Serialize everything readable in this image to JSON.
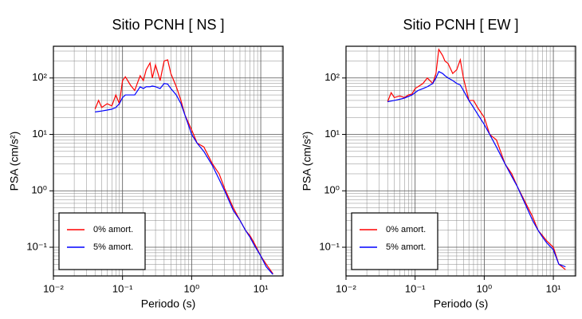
{
  "chart_data": [
    {
      "type": "line",
      "title": "Sitio PCNH [ NS ]",
      "x_label": "Periodo (s)",
      "y_label": "PSA (cm/s²)",
      "x": [
        0.04,
        0.045,
        0.05,
        0.06,
        0.07,
        0.08,
        0.09,
        0.1,
        0.11,
        0.13,
        0.15,
        0.18,
        0.2,
        0.22,
        0.25,
        0.27,
        0.3,
        0.35,
        0.4,
        0.45,
        0.5,
        0.6,
        0.7,
        0.8,
        1,
        1.2,
        1.5,
        2,
        2.5,
        3,
        4,
        5,
        6,
        7,
        8,
        10,
        12,
        15
      ],
      "series": [
        {
          "name": "0% amort.",
          "color": "#ff0000",
          "values": [
            28,
            40,
            30,
            35,
            32,
            50,
            35,
            90,
            105,
            75,
            60,
            110,
            90,
            140,
            185,
            100,
            170,
            90,
            200,
            210,
            120,
            70,
            40,
            22,
            12,
            7,
            6,
            3,
            2,
            1.1,
            0.5,
            0.3,
            0.2,
            0.16,
            0.12,
            0.07,
            0.05,
            0.034
          ]
        },
        {
          "name": "5% amort.",
          "color": "#0000ff",
          "values": [
            25,
            25.5,
            26,
            27,
            28,
            30,
            35,
            45,
            50,
            50,
            50,
            70,
            65,
            70,
            70,
            72,
            70,
            65,
            80,
            78,
            65,
            50,
            35,
            22,
            10,
            7,
            5,
            2.8,
            1.6,
            1.0,
            0.45,
            0.3,
            0.2,
            0.15,
            0.11,
            0.07,
            0.045,
            0.033
          ]
        }
      ],
      "xlim": [
        0.01,
        21
      ],
      "ylim": [
        0.031,
        365
      ],
      "log_x": true,
      "log_y": true,
      "xticks": [
        {
          "value": 0.01,
          "label": "10⁻²"
        },
        {
          "value": 0.1,
          "label": "10⁻¹"
        },
        {
          "value": 1,
          "label": "10⁰"
        },
        {
          "value": 10,
          "label": "10¹"
        }
      ],
      "yticks": [
        {
          "value": 0.1,
          "label": "10⁻¹"
        },
        {
          "value": 1,
          "label": "10⁰"
        },
        {
          "value": 10,
          "label": "10¹"
        },
        {
          "value": 100,
          "label": "10²"
        }
      ],
      "grid": true,
      "legend": "lower left"
    },
    {
      "type": "line",
      "title": "Sitio PCNH [ EW ]",
      "x_label": "Periodo (s)",
      "y_label": "PSA (cm/s²)",
      "x": [
        0.04,
        0.045,
        0.05,
        0.06,
        0.07,
        0.08,
        0.09,
        0.1,
        0.11,
        0.13,
        0.15,
        0.18,
        0.2,
        0.22,
        0.25,
        0.27,
        0.3,
        0.35,
        0.4,
        0.45,
        0.5,
        0.6,
        0.7,
        0.8,
        1,
        1.2,
        1.5,
        2,
        2.5,
        3,
        4,
        5,
        6,
        7,
        8,
        10,
        12,
        15
      ],
      "series": [
        {
          "name": "0% amort.",
          "color": "#ff0000",
          "values": [
            38,
            55,
            45,
            48,
            45,
            50,
            52,
            65,
            70,
            80,
            100,
            80,
            120,
            320,
            250,
            200,
            180,
            120,
            140,
            210,
            100,
            40,
            40,
            30,
            20,
            10,
            8,
            3,
            2,
            1.2,
            0.6,
            0.35,
            0.2,
            0.16,
            0.13,
            0.1,
            0.05,
            0.04
          ]
        },
        {
          "name": "5% amort.",
          "color": "#0000ff",
          "values": [
            38,
            39,
            40,
            42,
            44,
            47,
            50,
            55,
            60,
            65,
            70,
            80,
            100,
            130,
            120,
            110,
            100,
            90,
            80,
            75,
            60,
            40,
            30,
            23,
            15,
            10,
            6,
            3,
            1.8,
            1.2,
            0.55,
            0.3,
            0.2,
            0.15,
            0.12,
            0.09,
            0.05,
            0.045
          ]
        }
      ],
      "xlim": [
        0.01,
        21
      ],
      "ylim": [
        0.031,
        365
      ],
      "log_x": true,
      "log_y": true,
      "xticks": [
        {
          "value": 0.01,
          "label": "10⁻²"
        },
        {
          "value": 0.1,
          "label": "10⁻¹"
        },
        {
          "value": 1,
          "label": "10⁰"
        },
        {
          "value": 10,
          "label": "10¹"
        }
      ],
      "yticks": [
        {
          "value": 0.1,
          "label": "10⁻¹"
        },
        {
          "value": 1,
          "label": "10⁰"
        },
        {
          "value": 10,
          "label": "10¹"
        },
        {
          "value": 100,
          "label": "10²"
        }
      ],
      "grid": true,
      "legend": "lower left"
    }
  ]
}
